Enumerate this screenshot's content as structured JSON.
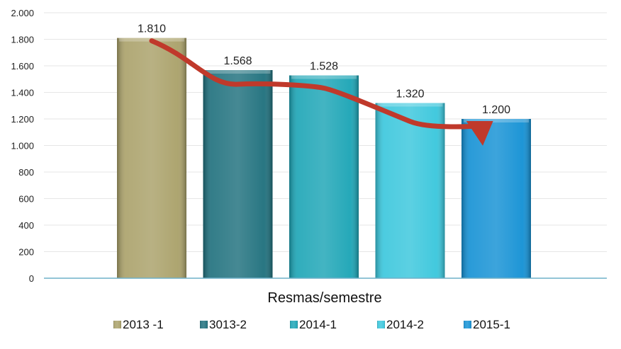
{
  "chart_data": {
    "type": "bar",
    "categories": [
      "2013 -1",
      "3013-2",
      "2014-1",
      "2014-2",
      "2015-1"
    ],
    "values": [
      1810,
      1568,
      1528,
      1320,
      1200
    ],
    "value_labels": [
      "1.810",
      "1.568",
      "1.528",
      "1.320",
      "1.200"
    ],
    "title": "",
    "xlabel": "Resmas/semestre",
    "ylabel": "",
    "ylim": [
      0,
      2000
    ],
    "yticks": [
      0,
      200,
      400,
      600,
      800,
      1000,
      1200,
      1400,
      1600,
      1800,
      2000
    ],
    "ytick_labels": [
      "0",
      "200",
      "400",
      "600",
      "800",
      "1.000",
      "1.200",
      "1.400",
      "1.600",
      "1.800",
      "2.000"
    ],
    "grid": true,
    "legend": "bottom",
    "colors": [
      "#a9a068",
      "#1d6f7c",
      "#1aa4b5",
      "#38c6dc",
      "#1290d4"
    ],
    "trend_arrow_color": "#c0392b",
    "trend_arrow": "down"
  }
}
